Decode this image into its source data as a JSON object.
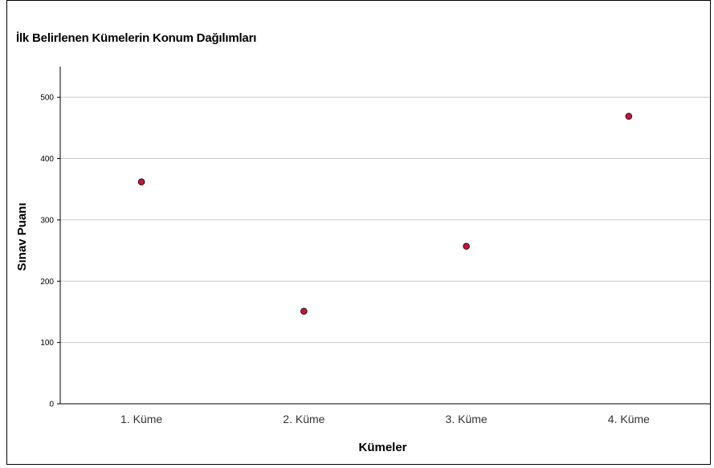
{
  "chart_data": {
    "type": "scatter",
    "title": "İlk Belirlenen Kümelerin Konum Dağılımları",
    "xlabel": "Kümeler",
    "ylabel": "Sınav Puanı",
    "categories": [
      "1. Küme",
      "2. Küme",
      "3. Küme",
      "4. Küme"
    ],
    "values": [
      362,
      151,
      257,
      469
    ],
    "ylim": [
      0,
      550
    ],
    "yticks": [
      0,
      100,
      200,
      300,
      400,
      500
    ],
    "grid": true,
    "marker_color": "#c0183c",
    "marker_edge_color": "#3a0a14"
  }
}
